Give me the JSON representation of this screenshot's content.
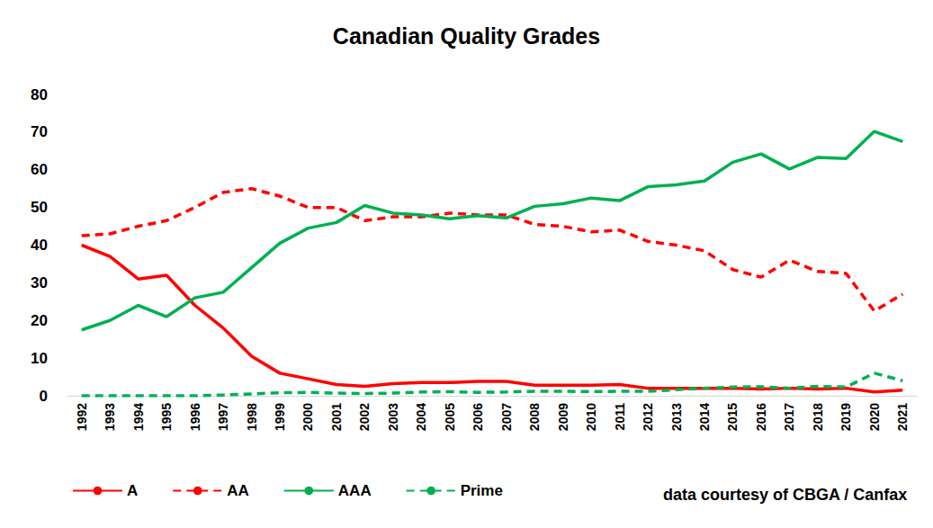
{
  "chart_data": {
    "type": "line",
    "title": "Canadian Quality Grades",
    "annotation": "data courtesy of CBGA / Canfax",
    "categories": [
      "1992",
      "1993",
      "1994",
      "1995",
      "1996",
      "1997",
      "1998",
      "1999",
      "2000",
      "2001",
      "2002",
      "2003",
      "2004",
      "2005",
      "2006",
      "2007",
      "2008",
      "2009",
      "2010",
      "2011",
      "2012",
      "2013",
      "2014",
      "2015",
      "2016",
      "2017",
      "2018",
      "2019",
      "2020",
      "2021"
    ],
    "series": [
      {
        "name": "A",
        "color": "#ff0000",
        "line_style": "solid",
        "marker": "none",
        "values": [
          40,
          37,
          31,
          32,
          24,
          18,
          10.5,
          6,
          4.5,
          3,
          2.5,
          3.2,
          3.5,
          3.5,
          3.8,
          3.8,
          2.8,
          2.8,
          2.8,
          3,
          2,
          2,
          2,
          2,
          1.8,
          2,
          1.8,
          2,
          1,
          1.5
        ]
      },
      {
        "name": "AA",
        "color": "#ff0000",
        "line_style": "dashed",
        "marker": "none",
        "values": [
          42.5,
          43,
          45,
          46.5,
          50,
          54,
          55,
          53,
          50,
          50,
          46.5,
          47.5,
          47.5,
          48.5,
          48,
          48,
          45.5,
          45,
          43.5,
          44,
          41,
          40,
          38.5,
          33.5,
          31.5,
          36,
          33,
          32.5,
          22.5,
          27
        ]
      },
      {
        "name": "AAA",
        "color": "#00b050",
        "line_style": "solid",
        "marker": "none",
        "values": [
          17.5,
          20,
          24,
          21,
          26,
          27.5,
          34,
          40.5,
          44.5,
          46,
          50.5,
          48.5,
          48,
          47,
          47.8,
          47.2,
          50.3,
          51,
          52.5,
          51.8,
          55.5,
          56,
          57,
          62,
          64.2,
          60.2,
          63.3,
          63,
          70.2,
          67.5
        ]
      },
      {
        "name": "Prime",
        "color": "#00b050",
        "line_style": "dashed",
        "marker": "none",
        "values": [
          0,
          0,
          0,
          0,
          0,
          0.2,
          0.5,
          0.8,
          0.9,
          0.7,
          0.6,
          0.7,
          1,
          1.1,
          0.9,
          1,
          1.2,
          1.2,
          1.1,
          1.2,
          1.2,
          1.6,
          2,
          2.3,
          2.4,
          2,
          2.5,
          2.3,
          6,
          4
        ]
      }
    ],
    "ylim": [
      0,
      80
    ],
    "yticks": [
      0,
      10,
      20,
      30,
      40,
      50,
      60,
      70,
      80
    ],
    "grid": false,
    "legend": "bottom"
  }
}
